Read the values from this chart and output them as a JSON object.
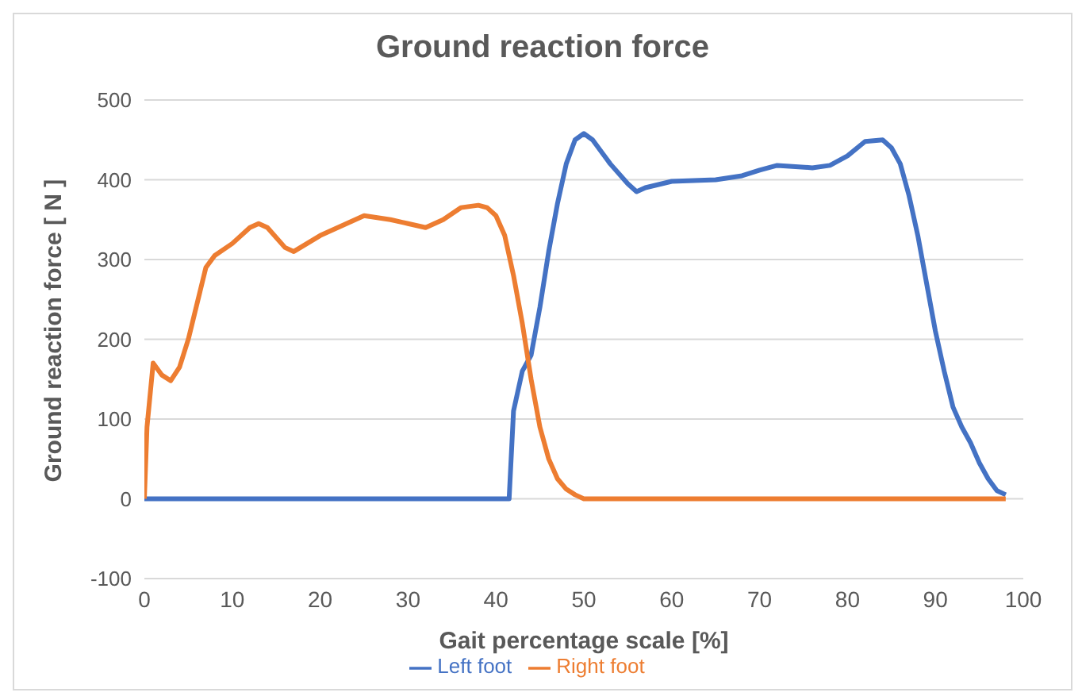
{
  "chart_data": {
    "type": "line",
    "title": "Ground reaction force",
    "xlabel": "Gait percentage scale  [%]",
    "ylabel": "Ground reaction force [ N ]",
    "xlim": [
      0,
      100
    ],
    "xticks": [
      0,
      10,
      20,
      30,
      40,
      50,
      60,
      70,
      80,
      90,
      100
    ],
    "ylim": [
      -100,
      500
    ],
    "yticks": [
      -100,
      0,
      100,
      200,
      300,
      400,
      500
    ],
    "grid": "y",
    "legend": "bottom",
    "marker": "none",
    "line_style": "solid",
    "series": [
      {
        "name": "Left foot",
        "color": "#4472c4",
        "x": [
          0,
          41.5,
          42,
          43,
          44,
          45,
          46,
          47,
          48,
          49,
          50,
          51,
          53,
          55,
          56,
          57,
          60,
          65,
          68,
          70,
          72,
          76,
          78,
          80,
          82,
          84,
          85,
          86,
          87,
          88,
          89,
          90,
          91,
          92,
          93,
          94,
          95,
          96,
          97,
          98
        ],
        "values": [
          0,
          0,
          110,
          160,
          180,
          240,
          310,
          370,
          420,
          450,
          458,
          450,
          420,
          395,
          385,
          390,
          398,
          400,
          405,
          412,
          418,
          415,
          418,
          430,
          448,
          450,
          440,
          420,
          380,
          330,
          270,
          210,
          160,
          115,
          90,
          70,
          45,
          25,
          10,
          5
        ]
      },
      {
        "name": "Right foot",
        "color": "#ed7d31",
        "x": [
          0,
          0.3,
          1,
          2,
          3,
          4,
          5,
          6,
          7,
          8,
          10,
          12,
          13,
          14,
          16,
          17,
          20,
          23,
          25,
          28,
          30,
          32,
          34,
          36,
          38,
          39,
          40,
          41,
          42,
          43,
          44,
          45,
          46,
          47,
          48,
          49,
          50,
          98
        ],
        "values": [
          0,
          90,
          170,
          155,
          148,
          165,
          200,
          245,
          290,
          305,
          320,
          340,
          345,
          340,
          315,
          310,
          330,
          345,
          355,
          350,
          345,
          340,
          350,
          365,
          368,
          365,
          355,
          330,
          280,
          220,
          150,
          90,
          50,
          25,
          12,
          5,
          0,
          0
        ]
      }
    ]
  }
}
